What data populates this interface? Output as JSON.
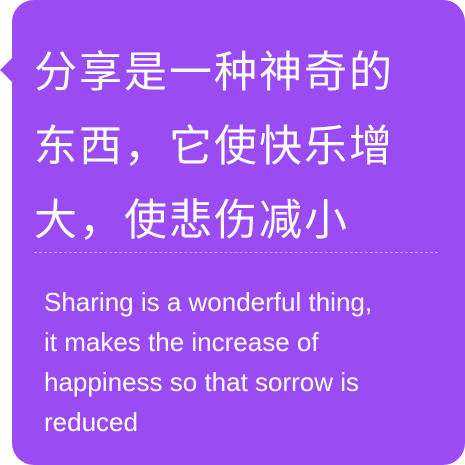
{
  "card": {
    "background_color": "#9a4cf2",
    "text_color": "#ffffff",
    "chinese_lines": [
      "分享是一种神奇的",
      "东西，它使快乐增",
      "大，使悲伤减小"
    ],
    "english_lines": [
      "Sharing is a wonderful thing,",
      "it makes the increase of",
      "happiness so that sorrow is",
      "reduced"
    ]
  }
}
